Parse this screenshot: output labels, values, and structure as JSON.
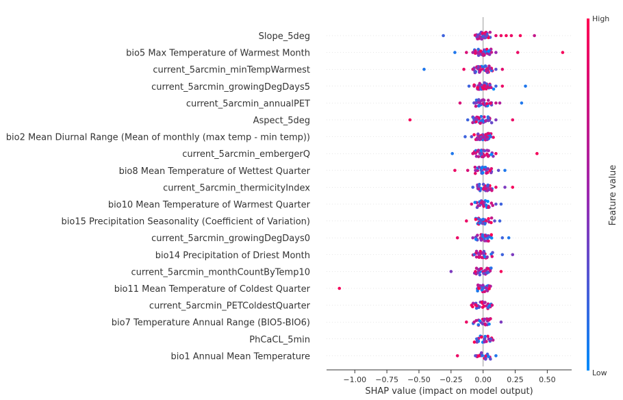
{
  "chart_data": {
    "type": "scatter",
    "xlabel": "SHAP value (impact on model output)",
    "xticks": [
      "−1.00",
      "−0.75",
      "−0.50",
      "−0.25",
      "0.00",
      "0.25",
      "0.50"
    ],
    "xtick_values": [
      -1.0,
      -0.75,
      -0.5,
      -0.25,
      0.0,
      0.25,
      0.5
    ],
    "xlim": [
      -1.22,
      0.69
    ],
    "colorbar": {
      "label": "Feature value",
      "high_label": "High",
      "low_label": "Low",
      "high_color": "#ff0052",
      "low_color": "#008bfb"
    },
    "features": [
      {
        "name": "Slope_5deg",
        "points": [
          [
            -0.31,
            0.2
          ],
          [
            0.03,
            0.3
          ],
          [
            0.1,
            0.85
          ],
          [
            0.14,
            0.9
          ],
          [
            0.18,
            0.95
          ],
          [
            0.22,
            0.9
          ],
          [
            0.29,
            0.95
          ],
          [
            0.4,
            0.7
          ]
        ]
      },
      {
        "name": "bio5 Max Temperature of Warmest Month",
        "points": [
          [
            -0.22,
            0.1
          ],
          [
            -0.13,
            0.8
          ],
          [
            -0.08,
            0.6
          ],
          [
            0.1,
            0.5
          ],
          [
            0.27,
            0.9
          ],
          [
            0.62,
            0.95
          ]
        ]
      },
      {
        "name": "current_5arcmin_minTempWarmest",
        "points": [
          [
            -0.46,
            0.1
          ],
          [
            -0.15,
            0.9
          ],
          [
            -0.08,
            0.7
          ],
          [
            0.1,
            0.3
          ],
          [
            0.15,
            0.85
          ]
        ]
      },
      {
        "name": "current_5arcmin_growingDegDays5",
        "points": [
          [
            -0.11,
            0.2
          ],
          [
            -0.07,
            0.8
          ],
          [
            0.1,
            0.2
          ],
          [
            0.15,
            0.9
          ],
          [
            0.33,
            0.1
          ]
        ]
      },
      {
        "name": "current_5arcmin_annualPET",
        "points": [
          [
            -0.18,
            0.8
          ],
          [
            -0.06,
            0.4
          ],
          [
            0.1,
            0.7
          ],
          [
            0.13,
            0.6
          ],
          [
            0.3,
            0.1
          ]
        ]
      },
      {
        "name": "Aspect_5deg",
        "points": [
          [
            -0.57,
            0.95
          ],
          [
            -0.12,
            0.2
          ],
          [
            -0.07,
            0.3
          ],
          [
            0.1,
            0.4
          ],
          [
            0.23,
            0.9
          ]
        ]
      },
      {
        "name": "bio2 Mean Diurnal Range (Mean of monthly (max temp - min temp))",
        "points": [
          [
            -0.14,
            0.2
          ],
          [
            -0.09,
            0.3
          ],
          [
            0.06,
            0.2
          ]
        ]
      },
      {
        "name": "current_5arcmin_embergerQ",
        "points": [
          [
            -0.24,
            0.1
          ],
          [
            -0.08,
            0.8
          ],
          [
            0.1,
            0.9
          ],
          [
            0.42,
            0.95
          ]
        ]
      },
      {
        "name": "bio8 Mean Temperature of Wettest Quarter",
        "points": [
          [
            -0.22,
            0.9
          ],
          [
            -0.12,
            0.8
          ],
          [
            -0.06,
            0.5
          ],
          [
            0.12,
            0.3
          ],
          [
            0.17,
            0.1
          ]
        ]
      },
      {
        "name": "current_5arcmin_thermicityIndex",
        "points": [
          [
            -0.08,
            0.2
          ],
          [
            0.1,
            0.9
          ],
          [
            0.17,
            0.4
          ],
          [
            0.23,
            0.95
          ]
        ]
      },
      {
        "name": "bio10 Mean Temperature of Warmest Quarter",
        "points": [
          [
            -0.09,
            0.8
          ],
          [
            0.1,
            0.3
          ],
          [
            0.14,
            0.2
          ]
        ]
      },
      {
        "name": "bio15 Precipitation Seasonality (Coefficient of Variation)",
        "points": [
          [
            -0.13,
            0.9
          ],
          [
            0.09,
            0.3
          ],
          [
            0.13,
            0.2
          ]
        ]
      },
      {
        "name": "current_5arcmin_growingDegDays0",
        "points": [
          [
            -0.2,
            0.9
          ],
          [
            -0.08,
            0.5
          ],
          [
            0.15,
            0.2
          ],
          [
            0.2,
            0.1
          ]
        ]
      },
      {
        "name": "bio14 Precipitation of Driest Month",
        "points": [
          [
            -0.07,
            0.2
          ],
          [
            0.15,
            0.2
          ],
          [
            0.23,
            0.4
          ]
        ]
      },
      {
        "name": "current_5arcmin_monthCountByTemp10",
        "points": [
          [
            -0.25,
            0.4
          ],
          [
            -0.06,
            0.9
          ],
          [
            0.14,
            0.95
          ]
        ]
      },
      {
        "name": "bio11 Mean Temperature of Coldest Quarter",
        "points": [
          [
            -1.12,
            0.95
          ],
          [
            0.0,
            0.2
          ]
        ]
      },
      {
        "name": "current_5arcmin_PETColdestQuarter",
        "points": [
          [
            -0.09,
            0.9
          ],
          [
            0.07,
            0.8
          ]
        ]
      },
      {
        "name": "bio7 Temperature Annual Range (BIO5-BIO6)",
        "points": [
          [
            -0.13,
            0.9
          ],
          [
            -0.07,
            0.7
          ],
          [
            0.14,
            0.4
          ]
        ]
      },
      {
        "name": "PhCaCL_5min",
        "points": [
          [
            -0.05,
            0.2
          ],
          [
            0.06,
            0.3
          ]
        ]
      },
      {
        "name": "bio1 Annual Mean Temperature",
        "points": [
          [
            -0.2,
            0.9
          ],
          [
            -0.06,
            0.3
          ],
          [
            0.1,
            0.1
          ]
        ]
      }
    ]
  }
}
